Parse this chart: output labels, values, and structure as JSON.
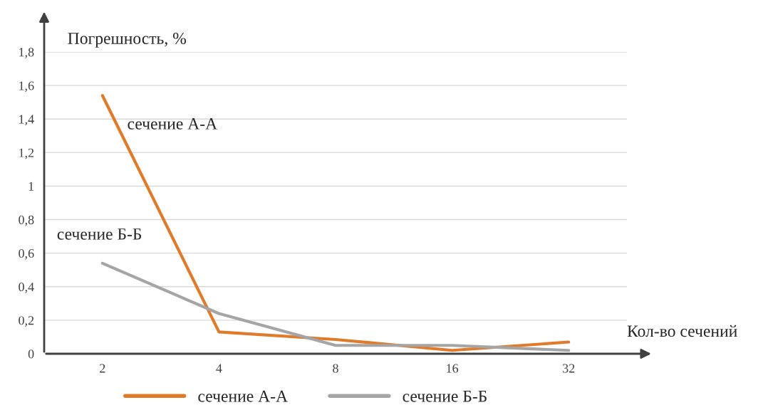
{
  "chart_data": {
    "type": "line",
    "xlabel": "Кол-во сечений",
    "ylabel": "Погрешность, %",
    "categories": [
      "2",
      "4",
      "8",
      "16",
      "32"
    ],
    "series": [
      {
        "name": "сечение А-А",
        "color": "#e07b2a",
        "values": [
          1.54,
          0.13,
          0.085,
          0.02,
          0.07
        ]
      },
      {
        "name": "сечение Б-Б",
        "color": "#a5a5a5",
        "values": [
          0.54,
          0.24,
          0.05,
          0.05,
          0.02
        ]
      }
    ],
    "ylim": [
      0,
      1.8
    ],
    "yticks": [
      0,
      {
        "value": 0.2,
        "label": "0,2"
      },
      {
        "value": 0.4,
        "label": "0,4"
      },
      {
        "value": 0.6,
        "label": "0,6"
      },
      {
        "value": 0.8,
        "label": "0,8"
      },
      1,
      {
        "value": 1.2,
        "label": "1,2"
      },
      {
        "value": 1.4,
        "label": "1,4"
      },
      {
        "value": 1.6,
        "label": "1,6"
      },
      {
        "value": 1.8,
        "label": "1,8"
      }
    ],
    "grid": "y",
    "legend": "bottom",
    "marker": "none",
    "line_style": "solid"
  }
}
